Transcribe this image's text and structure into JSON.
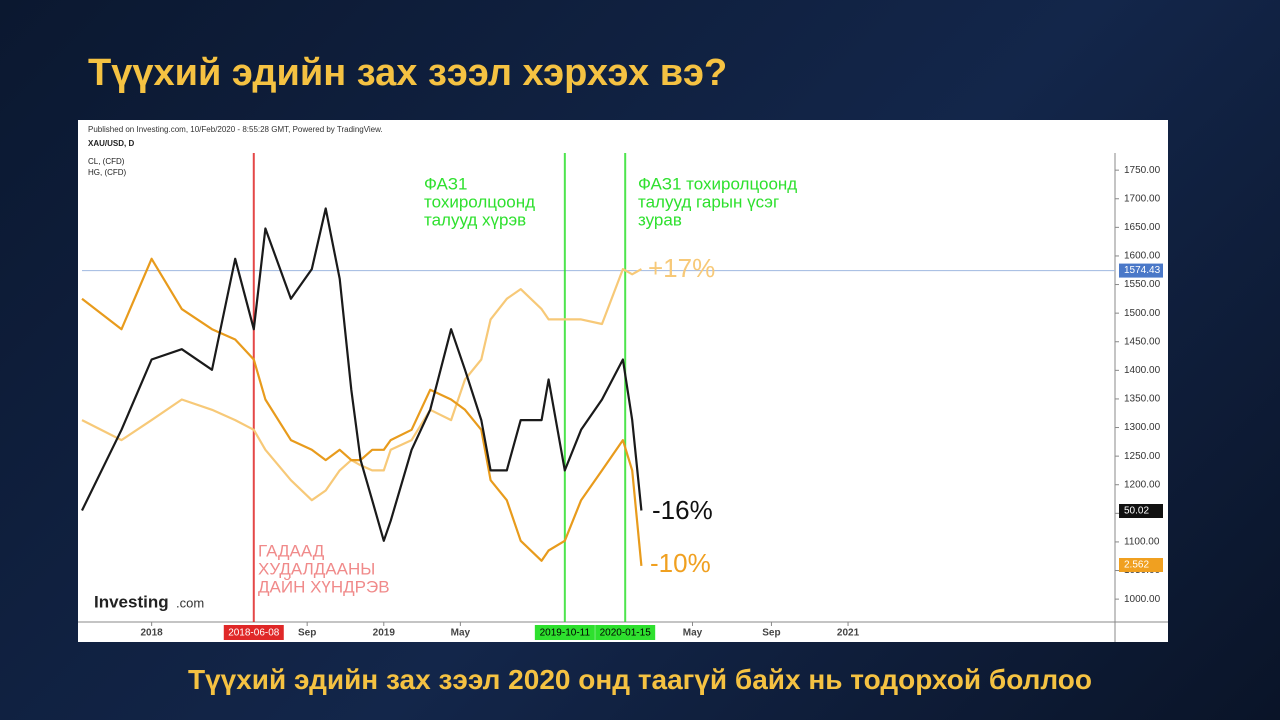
{
  "slide": {
    "title": "Түүхий эдийн зах зээл хэрхэх вэ?",
    "footer": "Түүхий эдийн зах зээл 2020 онд таагүй байх нь тодорхой боллоо"
  },
  "chart_data": {
    "type": "line",
    "publisher": "Published on Investing.com, 10/Feb/2020 - 8:55:28 GMT, Powered by TradingView.",
    "logo": "Investing",
    "logo_suffix": ".com",
    "x": [
      2017.7,
      2017.87,
      2018.0,
      2018.13,
      2018.26,
      2018.36,
      2018.44,
      2018.49,
      2018.6,
      2018.69,
      2018.75,
      2018.81,
      2018.86,
      2018.9,
      2018.95,
      2019.0,
      2019.03,
      2019.12,
      2019.2,
      2019.29,
      2019.35,
      2019.42,
      2019.46,
      2019.53,
      2019.59,
      2019.68,
      2019.71,
      2019.78,
      2019.85,
      2019.94,
      2020.03,
      2020.07,
      2020.11
    ],
    "series": [
      {
        "name": "XAU/USD, D",
        "color": "#f7c978",
        "last_label": "1574.43",
        "label_color": "#4a78c8",
        "values": [
          1313,
          1278,
          1313,
          1349,
          1331,
          1313,
          1296,
          1261,
          1208,
          1173,
          1190,
          1225,
          1243,
          1234,
          1225,
          1225,
          1261,
          1278,
          1331,
          1313,
          1384,
          1419,
          1489,
          1525,
          1542,
          1507,
          1489,
          1489,
          1489,
          1481,
          1577,
          1568,
          1577
        ]
      },
      {
        "name": "CL, (CFD)",
        "color": "#1a1a1a",
        "last_label": "50.02",
        "label_color": "#111111",
        "values": [
          1155,
          1296,
          1419,
          1437,
          1401,
          1595,
          1472,
          1648,
          1525,
          1577,
          1683,
          1560,
          1366,
          1243,
          1173,
          1102,
          1137,
          1261,
          1331,
          1472,
          1401,
          1313,
          1225,
          1225,
          1313,
          1313,
          1384,
          1225,
          1296,
          1349,
          1419,
          1313,
          1155
        ]
      },
      {
        "name": "HG, (CFD)",
        "color": "#e89b1c",
        "last_label": "2.562",
        "label_color": "#f0a020",
        "values": [
          1525,
          1472,
          1595,
          1507,
          1472,
          1454,
          1419,
          1349,
          1278,
          1261,
          1243,
          1261,
          1243,
          1243,
          1261,
          1261,
          1278,
          1296,
          1366,
          1349,
          1331,
          1296,
          1208,
          1173,
          1102,
          1067,
          1085,
          1102,
          1173,
          1225,
          1278,
          1225,
          1058
        ]
      }
    ],
    "xlim": [
      2017.7,
      2022.15
    ],
    "xticks": [
      {
        "value": 2018,
        "label": "2018"
      },
      {
        "value": 2018.67,
        "label": "Sep"
      },
      {
        "value": 2019,
        "label": "2019"
      },
      {
        "value": 2019.33,
        "label": "May"
      },
      {
        "value": 2020.33,
        "label": "May"
      },
      {
        "value": 2020.67,
        "label": "Sep"
      },
      {
        "value": 2021,
        "label": "2021"
      }
    ],
    "ylim": [
      960,
      1780
    ],
    "yticks": [
      {
        "value": 1000,
        "label": "1000.00"
      },
      {
        "value": 1050,
        "label": "1050.00"
      },
      {
        "value": 1100,
        "label": "1100.00"
      },
      {
        "value": 1150,
        "label": "1150.00"
      },
      {
        "value": 1200,
        "label": "1200.00"
      },
      {
        "value": 1250,
        "label": "1250.00"
      },
      {
        "value": 1300,
        "label": "1300.00"
      },
      {
        "value": 1350,
        "label": "1350.00"
      },
      {
        "value": 1400,
        "label": "1400.00"
      },
      {
        "value": 1450,
        "label": "1450.00"
      },
      {
        "value": 1500,
        "label": "1500.00"
      },
      {
        "value": 1550,
        "label": "1550.00"
      },
      {
        "value": 1600,
        "label": "1600.00"
      },
      {
        "value": 1650,
        "label": "1650.00"
      },
      {
        "value": 1700,
        "label": "1700.00"
      },
      {
        "value": 1750,
        "label": "1750.00"
      }
    ],
    "hline": 1574.43,
    "events": [
      {
        "x": 2018.44,
        "label": "2018-06-08",
        "color": "#e02828",
        "text": [
          "ГАДААД",
          "ХУДАЛДААНЫ",
          "ДАЙН ХҮНДРЭВ"
        ],
        "text_color": "#f08a8a"
      },
      {
        "x": 2019.78,
        "label": "2019-10-11",
        "color": "#2ee02e",
        "text": [
          "ФАЗ1",
          "тохиролцоонд",
          "талууд хүрэв"
        ],
        "text_color": "#2ee02e"
      },
      {
        "x": 2020.04,
        "label": "2020-01-15",
        "color": "#2ee02e",
        "text": [
          "ФАЗ1 тохиролцоонд",
          "талууд  гарын үсэг",
          "зурав"
        ],
        "text_color": "#2ee02e"
      }
    ],
    "annotations": [
      {
        "text": "+17%",
        "color": "#f7c978"
      },
      {
        "text": "-16%",
        "color": "#111111"
      },
      {
        "text": "-10%",
        "color": "#f0a020"
      }
    ]
  }
}
